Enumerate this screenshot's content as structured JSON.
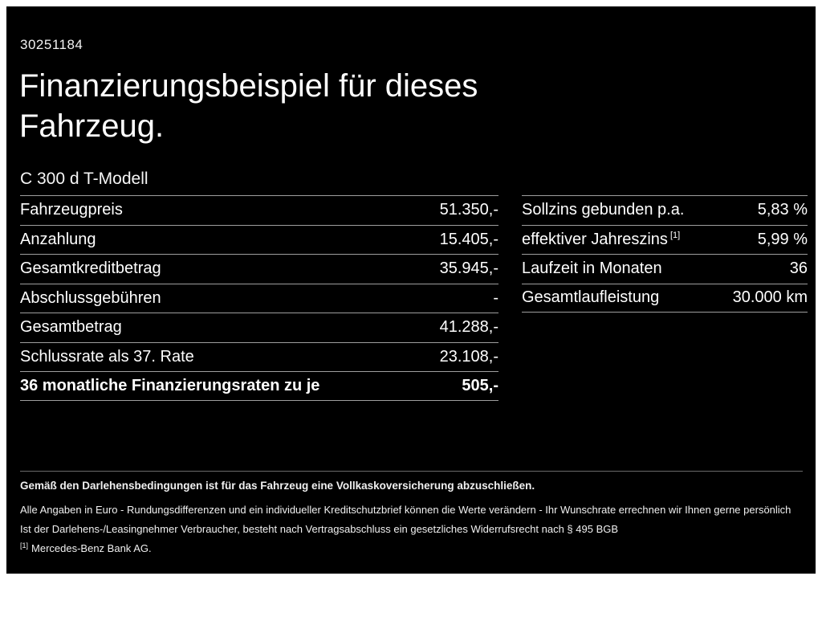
{
  "page": {
    "ref_number": "30251184",
    "title_line1": "Finanzierungsbeispiel für dieses",
    "title_line2": "Fahrzeug.",
    "model": "C 300 d T-Modell"
  },
  "left_table": {
    "rows": [
      {
        "label": "Fahrzeugpreis",
        "value": "51.350,-"
      },
      {
        "label": "Anzahlung",
        "value": "15.405,-"
      },
      {
        "label": "Gesamtkreditbetrag",
        "value": "35.945,-"
      },
      {
        "label": "Abschlussgebühren",
        "value": "-"
      },
      {
        "label": "Gesamtbetrag",
        "value": "41.288,-"
      },
      {
        "label": "Schlussrate als 37. Rate",
        "value": "23.108,-"
      },
      {
        "label": "36 monatliche Finanzierungsraten zu je",
        "value": "505,-"
      }
    ]
  },
  "right_table": {
    "rows": [
      {
        "label": "Sollzins gebunden p.a.",
        "sup": "",
        "value": "5,83 %"
      },
      {
        "label": "effektiver Jahreszins",
        "sup": "[1]",
        "value": "5,99 %"
      },
      {
        "label": "Laufzeit in Monaten",
        "sup": "",
        "value": "36"
      },
      {
        "label": "Gesamtlaufleistung",
        "sup": "",
        "value": "30.000 km"
      }
    ]
  },
  "footer": {
    "line1": "Gemäß den Darlehensbedingungen ist für das Fahrzeug eine Vollkaskoversicherung abzuschließen.",
    "line2": "Alle Angaben in Euro - Rundungsdifferenzen und ein individueller Kreditschutzbrief können die Werte verändern - Ihr Wunschrate errechnen wir Ihnen gerne persönlich",
    "line3": "Ist der Darlehens-/Leasingnehmer Verbraucher, besteht nach Vertragsabschluss ein gesetzliches Widerrufsrecht nach § 495 BGB",
    "footnote_marker": "[1]",
    "footnote_text": "Mercedes-Benz Bank AG."
  },
  "colors": {
    "background": "#000000",
    "text": "#ffffff",
    "divider": "#9e9e9e"
  }
}
